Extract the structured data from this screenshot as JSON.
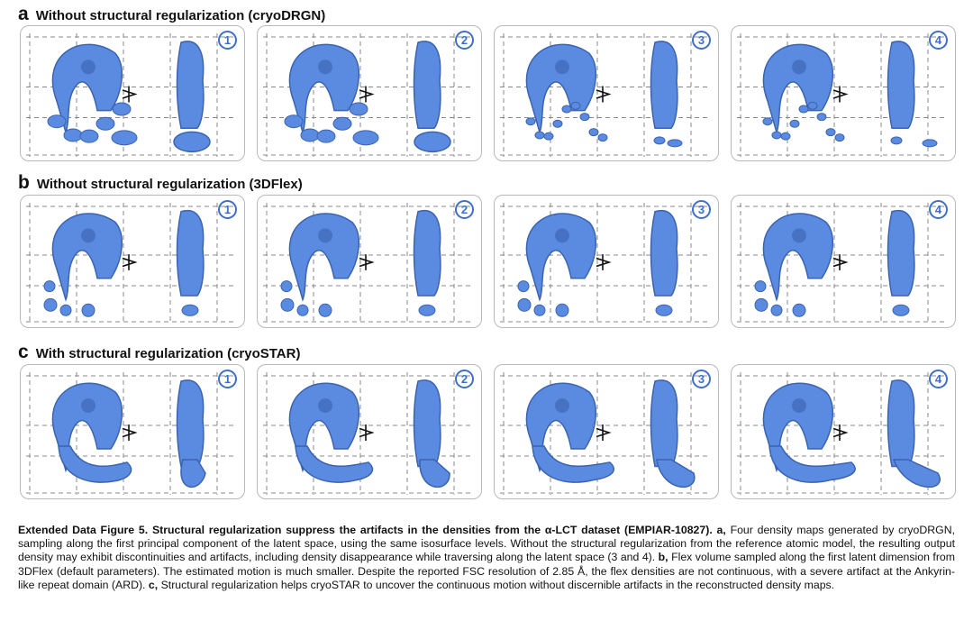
{
  "rows": [
    {
      "letter": "a",
      "title": "Without structural regularization (cryoDRGN)",
      "style": "lumpy"
    },
    {
      "letter": "b",
      "title": "Without structural regularization (3DFlex)",
      "style": "flex"
    },
    {
      "letter": "c",
      "title": "With structural regularization (cryoSTAR)",
      "style": "smooth"
    }
  ],
  "panel_labels": [
    "1",
    "2",
    "3",
    "4"
  ],
  "colors": {
    "density": "#5b8be0",
    "density_dark": "#3a63b0",
    "badge": "#3f6fc8",
    "border": "#b9b9b9"
  },
  "caption": {
    "title": "Extended Data Figure 5. Structural regularization suppress the artifacts in the densities from the α-LCT dataset (EMPIAR-10827).",
    "a_label": "a,",
    "a_text": "Four density maps generated by cryoDRGN, sampling along the first principal component of the latent space, using the same isosurface levels. Without the structural regularization from the reference atomic model, the resulting output density may exhibit discontinuities and artifacts, including density disappearance while traversing along the latent space (3 and 4).",
    "b_label": "b,",
    "b_text": "Flex volume sampled along the first latent dimension from 3DFlex (default parameters). The estimated motion is much smaller. Despite the reported FSC resolution of 2.85 Å, the flex densities are not continuous, with a severe artifact at the Ankyrin-like repeat domain (ARD).",
    "c_label": "c,",
    "c_text": "Structural regularization helps cryoSTAR to uncover the continuous motion without discernible artifacts in the reconstructed density maps."
  }
}
